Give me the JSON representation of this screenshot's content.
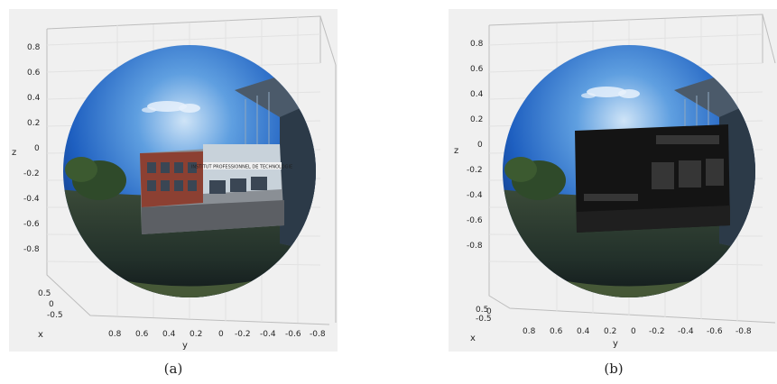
{
  "figures": [
    {
      "id": "a",
      "caption": "(a)",
      "overlay": "color",
      "z_ticks": [
        "0.8",
        "0.6",
        "0.4",
        "0.2",
        "0",
        "-0.2",
        "-0.4",
        "-0.6",
        "-0.8"
      ],
      "z_label": "z",
      "x_ticks": [
        "0.5",
        "0",
        "-0.5"
      ],
      "x_label": "x",
      "y_ticks": [
        "0.8",
        "0.6",
        "0.4",
        "0.2",
        "0",
        "-0.2",
        "-0.4",
        "-0.6",
        "-0.8"
      ],
      "y_label": "y",
      "sign_text": "INSTITUT PROFESSIONNEL DE TECHNOLOGIE"
    },
    {
      "id": "b",
      "caption": "(b)",
      "overlay": "dark",
      "z_ticks": [
        "0.8",
        "0.6",
        "0.4",
        "0.2",
        "0",
        "-0.2",
        "-0.4",
        "-0.6",
        "-0.8"
      ],
      "z_label": "z",
      "x_ticks": [
        "0.5",
        "0",
        "-0.5"
      ],
      "x_label": "x",
      "y_ticks": [
        "0.8",
        "0.6",
        "0.4",
        "0.2",
        "0",
        "-0.2",
        "-0.4",
        "-0.6",
        "-0.8"
      ],
      "y_label": "y"
    }
  ]
}
